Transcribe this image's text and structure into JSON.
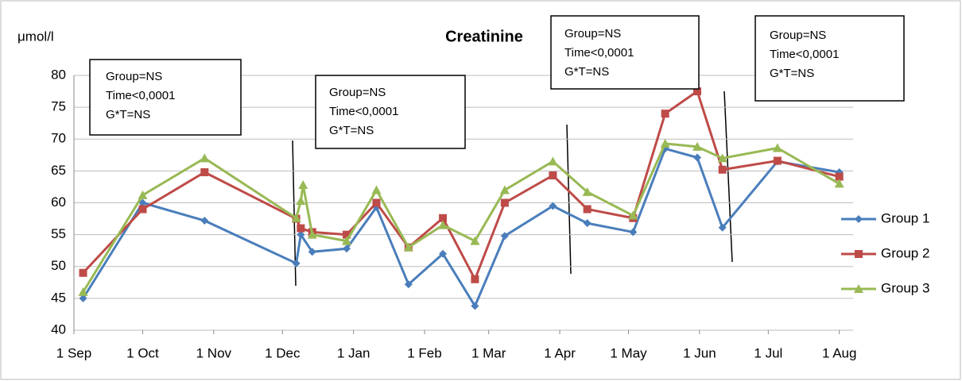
{
  "chart_data": {
    "type": "line",
    "title": "Creatinine",
    "y_label": "μmol/l",
    "xlim": [
      0,
      340
    ],
    "xticks": [
      {
        "value": 0,
        "label": "1 Sep"
      },
      {
        "value": 30,
        "label": "1 Oct"
      },
      {
        "value": 61,
        "label": "1 Nov"
      },
      {
        "value": 91,
        "label": "1 Dec"
      },
      {
        "value": 122,
        "label": "1 Jan"
      },
      {
        "value": 153,
        "label": "1 Feb"
      },
      {
        "value": 181,
        "label": "1 Mar"
      },
      {
        "value": 212,
        "label": "1 Apr"
      },
      {
        "value": 242,
        "label": "1 May"
      },
      {
        "value": 273,
        "label": "1 Jun"
      },
      {
        "value": 303,
        "label": "1 Jul"
      },
      {
        "value": 334,
        "label": "1 Aug"
      }
    ],
    "ylim": [
      40,
      80
    ],
    "yticks": [
      40,
      45,
      50,
      55,
      60,
      65,
      70,
      75,
      80
    ],
    "grid": true,
    "legend": "right",
    "series": [
      {
        "name": "Group 1",
        "color": "#4a7ebb",
        "marker": "diamond",
        "x": [
          4,
          30,
          57,
          97,
          99,
          104,
          119,
          132,
          146,
          161,
          175,
          188,
          209,
          224,
          244,
          258,
          272,
          283,
          307,
          334
        ],
        "values": [
          45,
          60,
          57.2,
          50.5,
          55,
          52.3,
          52.8,
          59.3,
          47.2,
          52,
          43.8,
          54.8,
          59.5,
          56.8,
          55.4,
          68.5,
          67.1,
          56.1,
          66.5,
          64.8
        ]
      },
      {
        "name": "Group 2",
        "color": "#be4b48",
        "marker": "square",
        "x": [
          4,
          30,
          57,
          97,
          99,
          104,
          119,
          132,
          146,
          161,
          175,
          188,
          209,
          224,
          244,
          258,
          272,
          283,
          307,
          334
        ],
        "values": [
          49,
          59,
          64.8,
          57.5,
          56,
          55.4,
          55,
          60,
          53,
          57.6,
          48,
          60,
          64.3,
          59,
          57.6,
          74,
          77.5,
          65.2,
          66.6,
          64.1
        ]
      },
      {
        "name": "Group 3",
        "color": "#98b954",
        "marker": "triangle",
        "x": [
          4,
          30,
          57,
          97,
          99,
          100,
          104,
          119,
          132,
          146,
          161,
          175,
          188,
          209,
          224,
          244,
          258,
          272,
          283,
          307,
          334
        ],
        "values": [
          46,
          61.2,
          67,
          57.6,
          60.3,
          62.8,
          55,
          54,
          62,
          53,
          56.5,
          54,
          62,
          66.5,
          61.7,
          58,
          69.3,
          68.8,
          67,
          68.6,
          63
        ]
      }
    ],
    "annotations": [
      [
        "Group=NS",
        "Time<0,0001",
        "G*T=NS"
      ],
      [
        "Group=NS",
        "Time<0,0001",
        "G*T=NS"
      ],
      [
        "Group=NS",
        "Time<0,0001",
        "G*T=NS"
      ],
      [
        "Group=NS",
        "Time<0,0001",
        "G*T=NS"
      ]
    ]
  }
}
